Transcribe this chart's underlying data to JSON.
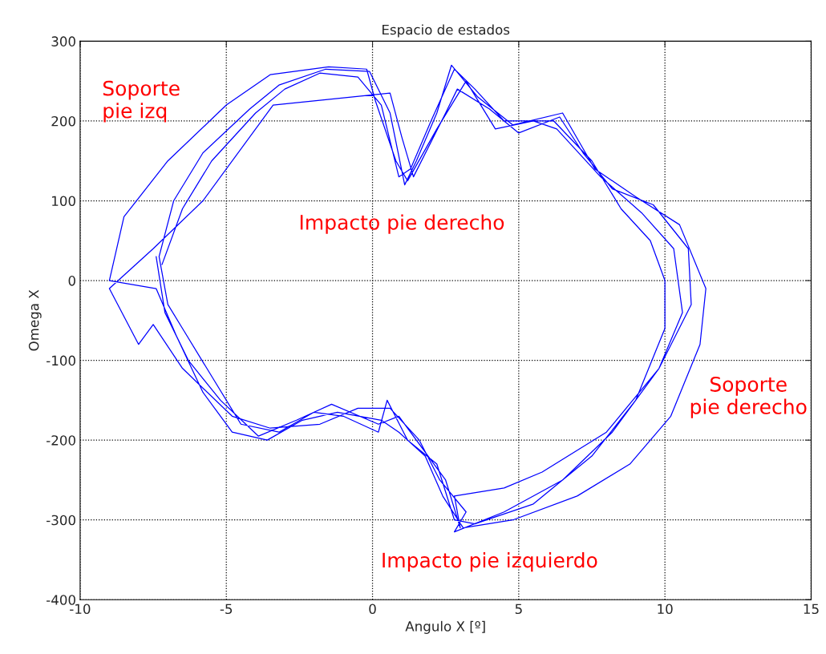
{
  "chart_data": {
    "type": "line",
    "title": "Espacio de estados",
    "xlabel": "Angulo X [º]",
    "ylabel": "Omega X",
    "xlim": [
      -10,
      15
    ],
    "ylim": [
      -400,
      300
    ],
    "xticks": [
      -10,
      -5,
      0,
      5,
      10,
      15
    ],
    "yticks": [
      -400,
      -300,
      -200,
      -100,
      0,
      100,
      200,
      300
    ],
    "grid": true,
    "annotations": [
      "Soporte\npie izq",
      "Impacto pie derecho",
      "Soporte\npie derecho",
      "Impacto pie izquierdo"
    ],
    "series": [
      {
        "color": "#0000ff",
        "x": [
          -7.2,
          -6.5,
          -5.5,
          -4,
          -3,
          -1.8,
          -0.5,
          0.3,
          0.9,
          1.3,
          2,
          2.8,
          3.5,
          4.5,
          6.2,
          7.5,
          8.5,
          9.5,
          10,
          10,
          9,
          7.5,
          5.5,
          3.5,
          2.8,
          2.2,
          1.2,
          0.5,
          0.2,
          -1,
          -2,
          -3.2,
          -4.5,
          -5.5,
          -6.5,
          -7,
          -7.3,
          -6.8,
          -5.8,
          -4.2,
          -3.2,
          -1.6,
          -0.1,
          0.6,
          1.1,
          1.5,
          2.2,
          2.7,
          3.6,
          4.8,
          6.5,
          7.6,
          9,
          10.5,
          11.4,
          11.2,
          10.2,
          8.8,
          7,
          4.8,
          3.1,
          2.4,
          1.8,
          0.9,
          0.3,
          -1.2,
          -2.4,
          -3.6,
          -4.8,
          -5.8,
          -6.7,
          -7.4,
          -9,
          -8.5,
          -7,
          -5,
          -3.5,
          -1.5,
          -0.2,
          0.1,
          0.8,
          1.2,
          2.2,
          3.2,
          4.2,
          5.5,
          6.3,
          7.8,
          9.2,
          10.3,
          10.6,
          9.8,
          8.2,
          6.5,
          4.5,
          2.8,
          3.2,
          2.3,
          1.6,
          0.6,
          -0.5,
          -1.8,
          -3.5,
          -4.8,
          -6.5,
          -7.5,
          -8,
          -9,
          -7.5,
          -5.8,
          -3.4,
          0.6,
          1.0,
          1.4,
          2.5,
          2.9,
          4,
          5,
          6.4,
          7.2,
          8.2,
          9.6,
          10.8,
          10.9,
          9.8,
          8,
          5.8,
          4.5,
          2.8,
          3.0,
          2.5,
          0.9,
          0.2,
          -1.4,
          -2.6,
          -3.9,
          -5.2,
          -6.3,
          -7.1,
          -7.4
        ],
        "values": [
          20,
          90,
          150,
          210,
          240,
          260,
          255,
          220,
          130,
          140,
          200,
          265,
          240,
          200,
          200,
          150,
          90,
          50,
          0,
          -60,
          -150,
          -220,
          -280,
          -305,
          -300,
          -230,
          -200,
          -150,
          -190,
          -170,
          -165,
          -190,
          -180,
          -120,
          -60,
          -30,
          30,
          100,
          160,
          215,
          245,
          265,
          262,
          210,
          120,
          150,
          210,
          270,
          230,
          195,
          210,
          140,
          105,
          70,
          -10,
          -80,
          -170,
          -230,
          -270,
          -300,
          -310,
          -270,
          -220,
          -190,
          -175,
          -165,
          -175,
          -200,
          -190,
          -140,
          -70,
          -10,
          0,
          80,
          150,
          220,
          258,
          268,
          265,
          225,
          150,
          125,
          190,
          250,
          190,
          200,
          190,
          130,
          85,
          40,
          -40,
          -110,
          -190,
          -250,
          -290,
          -315,
          -290,
          -250,
          -200,
          -160,
          -160,
          -180,
          -185,
          -170,
          -110,
          -55,
          -80,
          -10,
          40,
          100,
          220,
          235,
          180,
          130,
          210,
          240,
          215,
          185,
          205,
          160,
          115,
          95,
          40,
          -30,
          -110,
          -190,
          -240,
          -260,
          -270,
          -310,
          -250,
          -170,
          -180,
          -155,
          -175,
          -195,
          -150,
          -100,
          -40,
          30
        ]
      }
    ]
  }
}
